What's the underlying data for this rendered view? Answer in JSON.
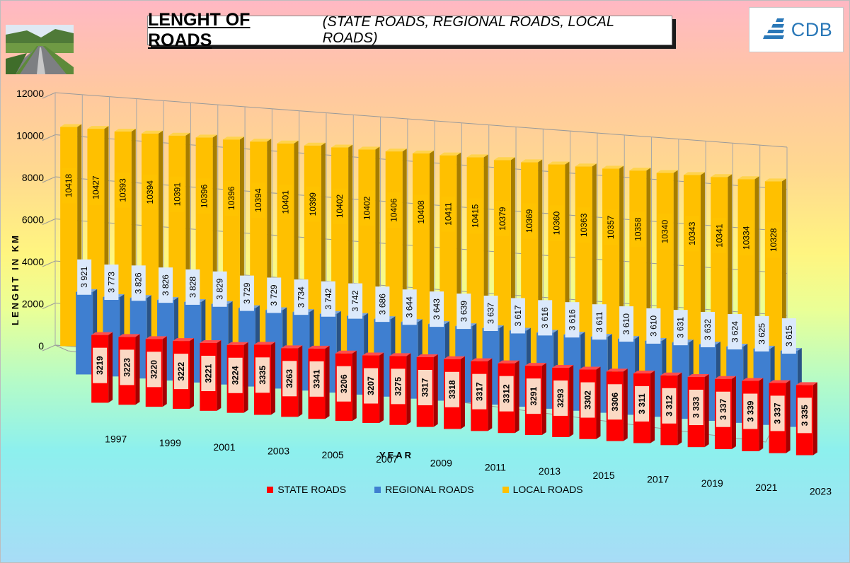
{
  "title": {
    "main": "LENGHT OF ROADS",
    "sub": "(STATE ROADS, REGIONAL ROADS, LOCAL ROADS)"
  },
  "logo": {
    "text": "CDB"
  },
  "chart_data": {
    "type": "bar",
    "title": "LENGHT OF ROADS (STATE ROADS, REGIONAL ROADS, LOCAL ROADS)",
    "xlabel": "YEAR",
    "ylabel": "LENGHT IN KM",
    "ylim": [
      0,
      12000
    ],
    "yticks": [
      "0",
      "2000",
      "4000",
      "6000",
      "8000",
      "10000",
      "12000"
    ],
    "categories": [
      "1997",
      "1998",
      "1999",
      "2000",
      "2001",
      "2002",
      "2003",
      "2004",
      "2005",
      "2006",
      "2007",
      "2008",
      "2009",
      "2010",
      "2011",
      "2012",
      "2013",
      "2014",
      "2015",
      "2016",
      "2017",
      "2018",
      "2019",
      "2020",
      "2021",
      "2022",
      "2023"
    ],
    "xtick_labels": [
      "1997",
      "1999",
      "2001",
      "2003",
      "2005",
      "2007",
      "2009",
      "2011",
      "2013",
      "2015",
      "2017",
      "2019",
      "2021",
      "2023"
    ],
    "grid": true,
    "legend_position": "bottom",
    "series": [
      {
        "name": "STATE ROADS",
        "color": "#ff0000",
        "values": [
          3219,
          3223,
          3220,
          3222,
          3221,
          3224,
          3335,
          3263,
          3341,
          3206,
          3207,
          3275,
          3317,
          3318,
          3317,
          3312,
          3291,
          3293,
          3302,
          3306,
          3311,
          3312,
          3333,
          3337,
          3339,
          3337,
          3335
        ],
        "labels": [
          "3219",
          "3223",
          "3220",
          "3222",
          "3221",
          "3224",
          "3335",
          "3263",
          "3341",
          "3206",
          "3207",
          "3275",
          "3317",
          "3318",
          "3317",
          "3312",
          "3291",
          "3293",
          "3302",
          "3306",
          "3 311",
          "3 312",
          "3 333",
          "3 337",
          "3 339",
          "3 337",
          "3 335"
        ]
      },
      {
        "name": "REGIONAL ROADS",
        "color": "#3f7fd0",
        "values": [
          3921,
          3773,
          3826,
          3826,
          3828,
          3829,
          3729,
          3729,
          3734,
          3742,
          3742,
          3686,
          3644,
          3643,
          3639,
          3637,
          3617,
          3616,
          3616,
          3611,
          3610,
          3610,
          3631,
          3632,
          3624,
          3625,
          3615
        ],
        "labels": [
          "3 921",
          "3 773",
          "3 826",
          "3 826",
          "3 828",
          "3 829",
          "3 729",
          "3 729",
          "3 734",
          "3 742",
          "3 742",
          "3 686",
          "3 644",
          "3 643",
          "3 639",
          "3 637",
          "3 617",
          "3 616",
          "3 616",
          "3 611",
          "3 610",
          "3 610",
          "3 631",
          "3 632",
          "3 624",
          "3 625",
          "3 615"
        ]
      },
      {
        "name": "LOCAL ROADS",
        "color": "#ffc000",
        "values": [
          10418,
          10427,
          10393,
          10394,
          10391,
          10396,
          10396,
          10394,
          10401,
          10399,
          10402,
          10402,
          10406,
          10408,
          10411,
          10415,
          10379,
          10369,
          10360,
          10363,
          10357,
          10358,
          10340,
          10343,
          10341,
          10334,
          10328
        ],
        "labels": [
          "10418",
          "10427",
          "10393",
          "10394",
          "10391",
          "10396",
          "10396",
          "10394",
          "10401",
          "10399",
          "10402",
          "10402",
          "10406",
          "10408",
          "10411",
          "10415",
          "10379",
          "10369",
          "10360",
          "10363",
          "10357",
          "10358",
          "10340",
          "10343",
          "10341",
          "10334",
          "10328"
        ]
      }
    ]
  }
}
